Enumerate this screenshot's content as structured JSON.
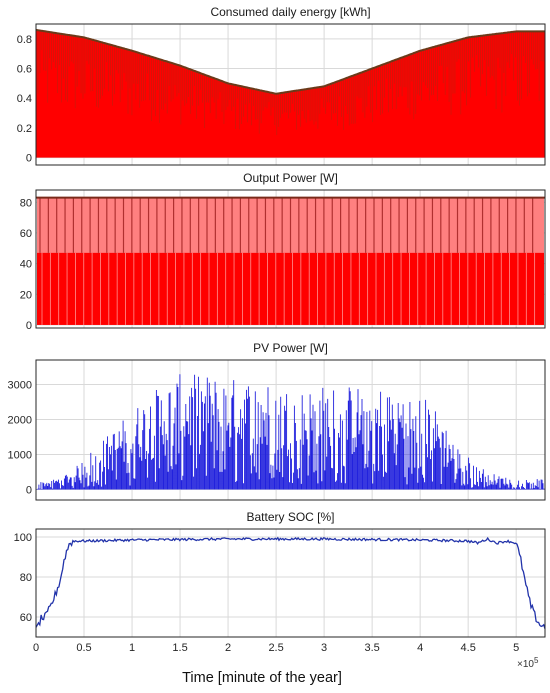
{
  "figure": {
    "xlabel": "Time [minute of the year]",
    "x_multiplier": "×10",
    "x_multiplier_exp": "5"
  },
  "chart_data": [
    {
      "type": "area",
      "title": "Consumed daily energy [kWh]",
      "xlabel": "",
      "ylabel": "",
      "xlim": [
        0,
        5.3
      ],
      "ylim": [
        -0.05,
        0.9
      ],
      "xticks": [
        "0",
        "0.5",
        "1",
        "1.5",
        "2",
        "2.5",
        "3",
        "3.5",
        "4",
        "4.5",
        "5"
      ],
      "yticks": [
        "0",
        "0.2",
        "0.4",
        "0.6",
        "0.8"
      ],
      "grid": true,
      "series": [
        {
          "color": "#ff0000",
          "x": [
            0,
            0.5,
            1.0,
            1.5,
            2.0,
            2.5,
            3.0,
            3.5,
            4.0,
            4.5,
            5.0,
            5.3
          ],
          "y_max": [
            0.86,
            0.81,
            0.72,
            0.62,
            0.5,
            0.43,
            0.48,
            0.6,
            0.72,
            0.81,
            0.85,
            0.85
          ],
          "y_min": [
            0,
            0,
            0,
            0,
            0,
            0,
            0,
            0,
            0,
            0,
            0,
            0
          ]
        }
      ]
    },
    {
      "type": "bar",
      "title": "Output Power [W]",
      "xlabel": "",
      "ylabel": "",
      "xlim": [
        0,
        5.3
      ],
      "ylim": [
        -2,
        88
      ],
      "xticks": [
        "0",
        "0.5",
        "1",
        "1.5",
        "2",
        "2.5",
        "3",
        "3.5",
        "4",
        "4.5",
        "5"
      ],
      "yticks": [
        "0",
        "20",
        "40",
        "60",
        "80"
      ],
      "grid": true,
      "series": [
        {
          "name_level": "max",
          "value": 83,
          "color": "#ff8080"
        },
        {
          "name_level": "base",
          "value": 47,
          "color": "#ff0000"
        }
      ]
    },
    {
      "type": "line",
      "title": "PV Power [W]",
      "xlabel": "",
      "ylabel": "",
      "xlim": [
        0,
        5.3
      ],
      "ylim": [
        -300,
        3700
      ],
      "xticks": [
        "0",
        "0.5",
        "1",
        "1.5",
        "2",
        "2.5",
        "3",
        "3.5",
        "4",
        "4.5",
        "5"
      ],
      "yticks": [
        "0",
        "1000",
        "2000",
        "3000"
      ],
      "grid": true,
      "series": [
        {
          "color": "#2222dd",
          "x": [
            0,
            0.2,
            0.4,
            0.5,
            0.6,
            0.8,
            1.0,
            1.2,
            1.5,
            1.8,
            2.0,
            2.2,
            2.5,
            2.8,
            3.0,
            3.2,
            3.5,
            3.8,
            4.0,
            4.2,
            4.4,
            4.6,
            4.8,
            5.0,
            5.3
          ],
          "y_peak": [
            200,
            300,
            600,
            900,
            1200,
            1700,
            2300,
            2800,
            3300,
            3300,
            3200,
            3200,
            3000,
            2900,
            3000,
            3000,
            3000,
            2900,
            2800,
            2200,
            1200,
            700,
            400,
            300,
            300
          ]
        }
      ]
    },
    {
      "type": "line",
      "title": "Battery SOC [%]",
      "xlabel": "",
      "ylabel": "",
      "xlim": [
        0,
        5.3
      ],
      "ylim": [
        50,
        104
      ],
      "xticks": [
        "0",
        "0.5",
        "1",
        "1.5",
        "2",
        "2.5",
        "3",
        "3.5",
        "4",
        "4.5",
        "5"
      ],
      "yticks": [
        "60",
        "80",
        "100"
      ],
      "grid": true,
      "series": [
        {
          "color": "#2233aa",
          "x": [
            0,
            0.05,
            0.1,
            0.15,
            0.2,
            0.25,
            0.3,
            0.35,
            0.4,
            0.5,
            1.0,
            2.0,
            3.0,
            4.0,
            4.5,
            4.6,
            4.7,
            4.8,
            4.9,
            5.0,
            5.05,
            5.1,
            5.15,
            5.2,
            5.25,
            5.3
          ],
          "y": [
            53,
            59,
            60,
            65,
            71,
            78,
            90,
            97,
            98,
            98,
            98.5,
            99,
            99,
            98.5,
            98,
            97,
            99,
            97,
            98,
            97,
            88,
            76,
            66,
            60,
            56,
            55
          ]
        }
      ]
    }
  ]
}
